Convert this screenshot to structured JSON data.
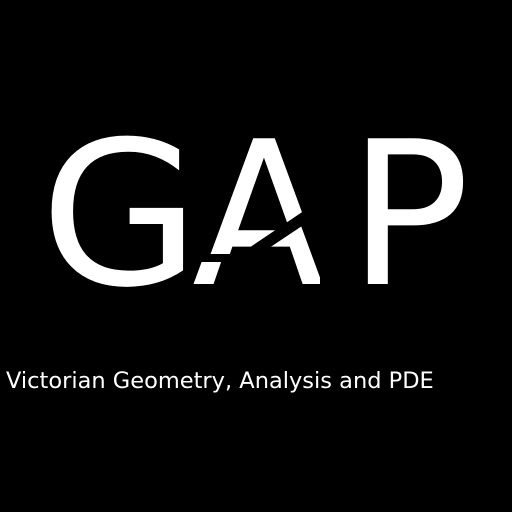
{
  "logo": {
    "letter_1": "G",
    "letter_2": "A",
    "letter_3": "P",
    "foreground_color": "#ffffff",
    "background_color": "#000000"
  },
  "tagline": "Victorian Geometry, Analysis and PDE"
}
